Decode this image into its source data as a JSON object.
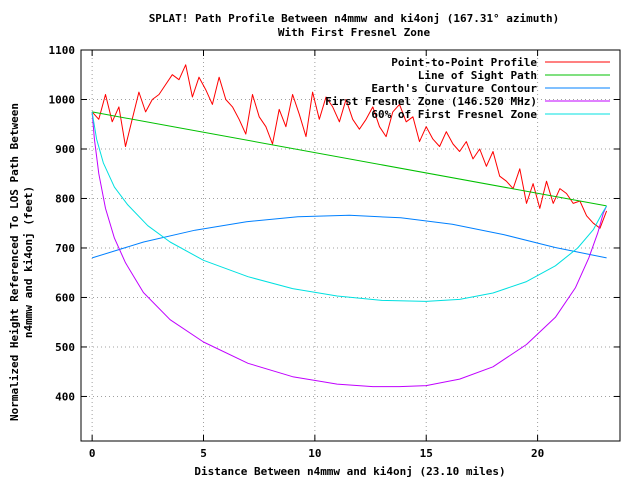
{
  "chart_data": {
    "type": "line",
    "title_line1": "SPLAT! Path Profile Between n4mmw and ki4onj (167.31° azimuth)",
    "title_line2": "With First Fresnel Zone",
    "xlabel": "Distance Between n4mmw and ki4onj (23.10 miles)",
    "ylabel_line1": "Normalized Height Referenced To LOS Path Between",
    "ylabel_line2": "n4mmw and ki4onj (feet)",
    "xlim": [
      -0.5,
      23.7
    ],
    "ylim": [
      310,
      1100
    ],
    "x_ticks": [
      0,
      5,
      10,
      15,
      20
    ],
    "y_ticks": [
      400,
      500,
      600,
      700,
      800,
      900,
      1000,
      1100
    ],
    "grid": true,
    "legend_position": "top-right",
    "path_length": 23.1,
    "series": [
      {
        "name": "Point-to-Point Profile",
        "color": "#ff0000",
        "x": [
          0,
          0.3,
          0.6,
          0.9,
          1.2,
          1.5,
          1.8,
          2.1,
          2.4,
          2.7,
          3.0,
          3.3,
          3.6,
          3.9,
          4.2,
          4.5,
          4.8,
          5.1,
          5.4,
          5.7,
          6.0,
          6.3,
          6.6,
          6.9,
          7.2,
          7.5,
          7.8,
          8.1,
          8.4,
          8.7,
          9.0,
          9.3,
          9.6,
          9.9,
          10.2,
          10.5,
          10.8,
          11.1,
          11.4,
          11.7,
          12.0,
          12.3,
          12.6,
          12.9,
          13.2,
          13.5,
          13.8,
          14.1,
          14.4,
          14.7,
          15.0,
          15.3,
          15.6,
          15.9,
          16.2,
          16.5,
          16.8,
          17.1,
          17.4,
          17.7,
          18.0,
          18.3,
          18.6,
          18.9,
          19.2,
          19.5,
          19.8,
          20.1,
          20.4,
          20.7,
          21.0,
          21.3,
          21.6,
          21.9,
          22.2,
          22.5,
          22.8,
          23.1
        ],
        "values": [
          975,
          960,
          1010,
          955,
          985,
          905,
          960,
          1015,
          975,
          1000,
          1010,
          1030,
          1050,
          1040,
          1070,
          1005,
          1045,
          1020,
          990,
          1045,
          1000,
          985,
          960,
          930,
          1010,
          965,
          945,
          910,
          980,
          945,
          1010,
          970,
          925,
          1015,
          960,
          1005,
          985,
          955,
          1000,
          960,
          940,
          960,
          985,
          945,
          925,
          975,
          990,
          955,
          965,
          915,
          945,
          920,
          905,
          935,
          910,
          895,
          915,
          880,
          900,
          865,
          895,
          845,
          835,
          820,
          860,
          790,
          830,
          780,
          835,
          790,
          820,
          810,
          790,
          795,
          765,
          750,
          740,
          775
        ]
      },
      {
        "name": "Line of Sight Path",
        "color": "#00c000",
        "x": [
          0,
          23.1
        ],
        "values": [
          975,
          785
        ]
      },
      {
        "name": "Earth's Curvature Contour",
        "color": "#0080ff",
        "x": [
          0,
          2.31,
          4.62,
          6.93,
          9.24,
          11.55,
          13.86,
          16.17,
          18.48,
          20.79,
          23.1
        ],
        "values": [
          680,
          712,
          736,
          753,
          763,
          766,
          761,
          748,
          727,
          701,
          680
        ]
      },
      {
        "name": "First Fresnel Zone (146.520 MHz)",
        "color": "#c000ff",
        "x": [
          0,
          0.1,
          0.3,
          0.6,
          1.0,
          1.5,
          2.3,
          3.5,
          5.0,
          7.0,
          9.0,
          11.0,
          12.6,
          13.8,
          15.0,
          16.5,
          18.0,
          19.5,
          20.8,
          21.7,
          22.3,
          22.7,
          22.95,
          23.1
        ],
        "values": [
          975,
          920,
          850,
          780,
          720,
          670,
          610,
          555,
          510,
          467,
          440,
          425,
          420,
          420,
          422,
          435,
          460,
          505,
          560,
          620,
          680,
          730,
          770,
          785
        ]
      },
      {
        "name": "60% of First Fresnel Zone",
        "color": "#00e0e0",
        "x": [
          0,
          0.2,
          0.5,
          1.0,
          1.6,
          2.5,
          3.5,
          5.0,
          7.0,
          9.0,
          11.0,
          13.0,
          15.0,
          16.5,
          18.0,
          19.5,
          20.8,
          21.8,
          22.5,
          22.9,
          23.1
        ],
        "values": [
          975,
          920,
          872,
          823,
          787,
          745,
          712,
          675,
          642,
          618,
          603,
          594,
          592,
          596,
          609,
          632,
          664,
          700,
          737,
          770,
          785
        ]
      }
    ]
  }
}
